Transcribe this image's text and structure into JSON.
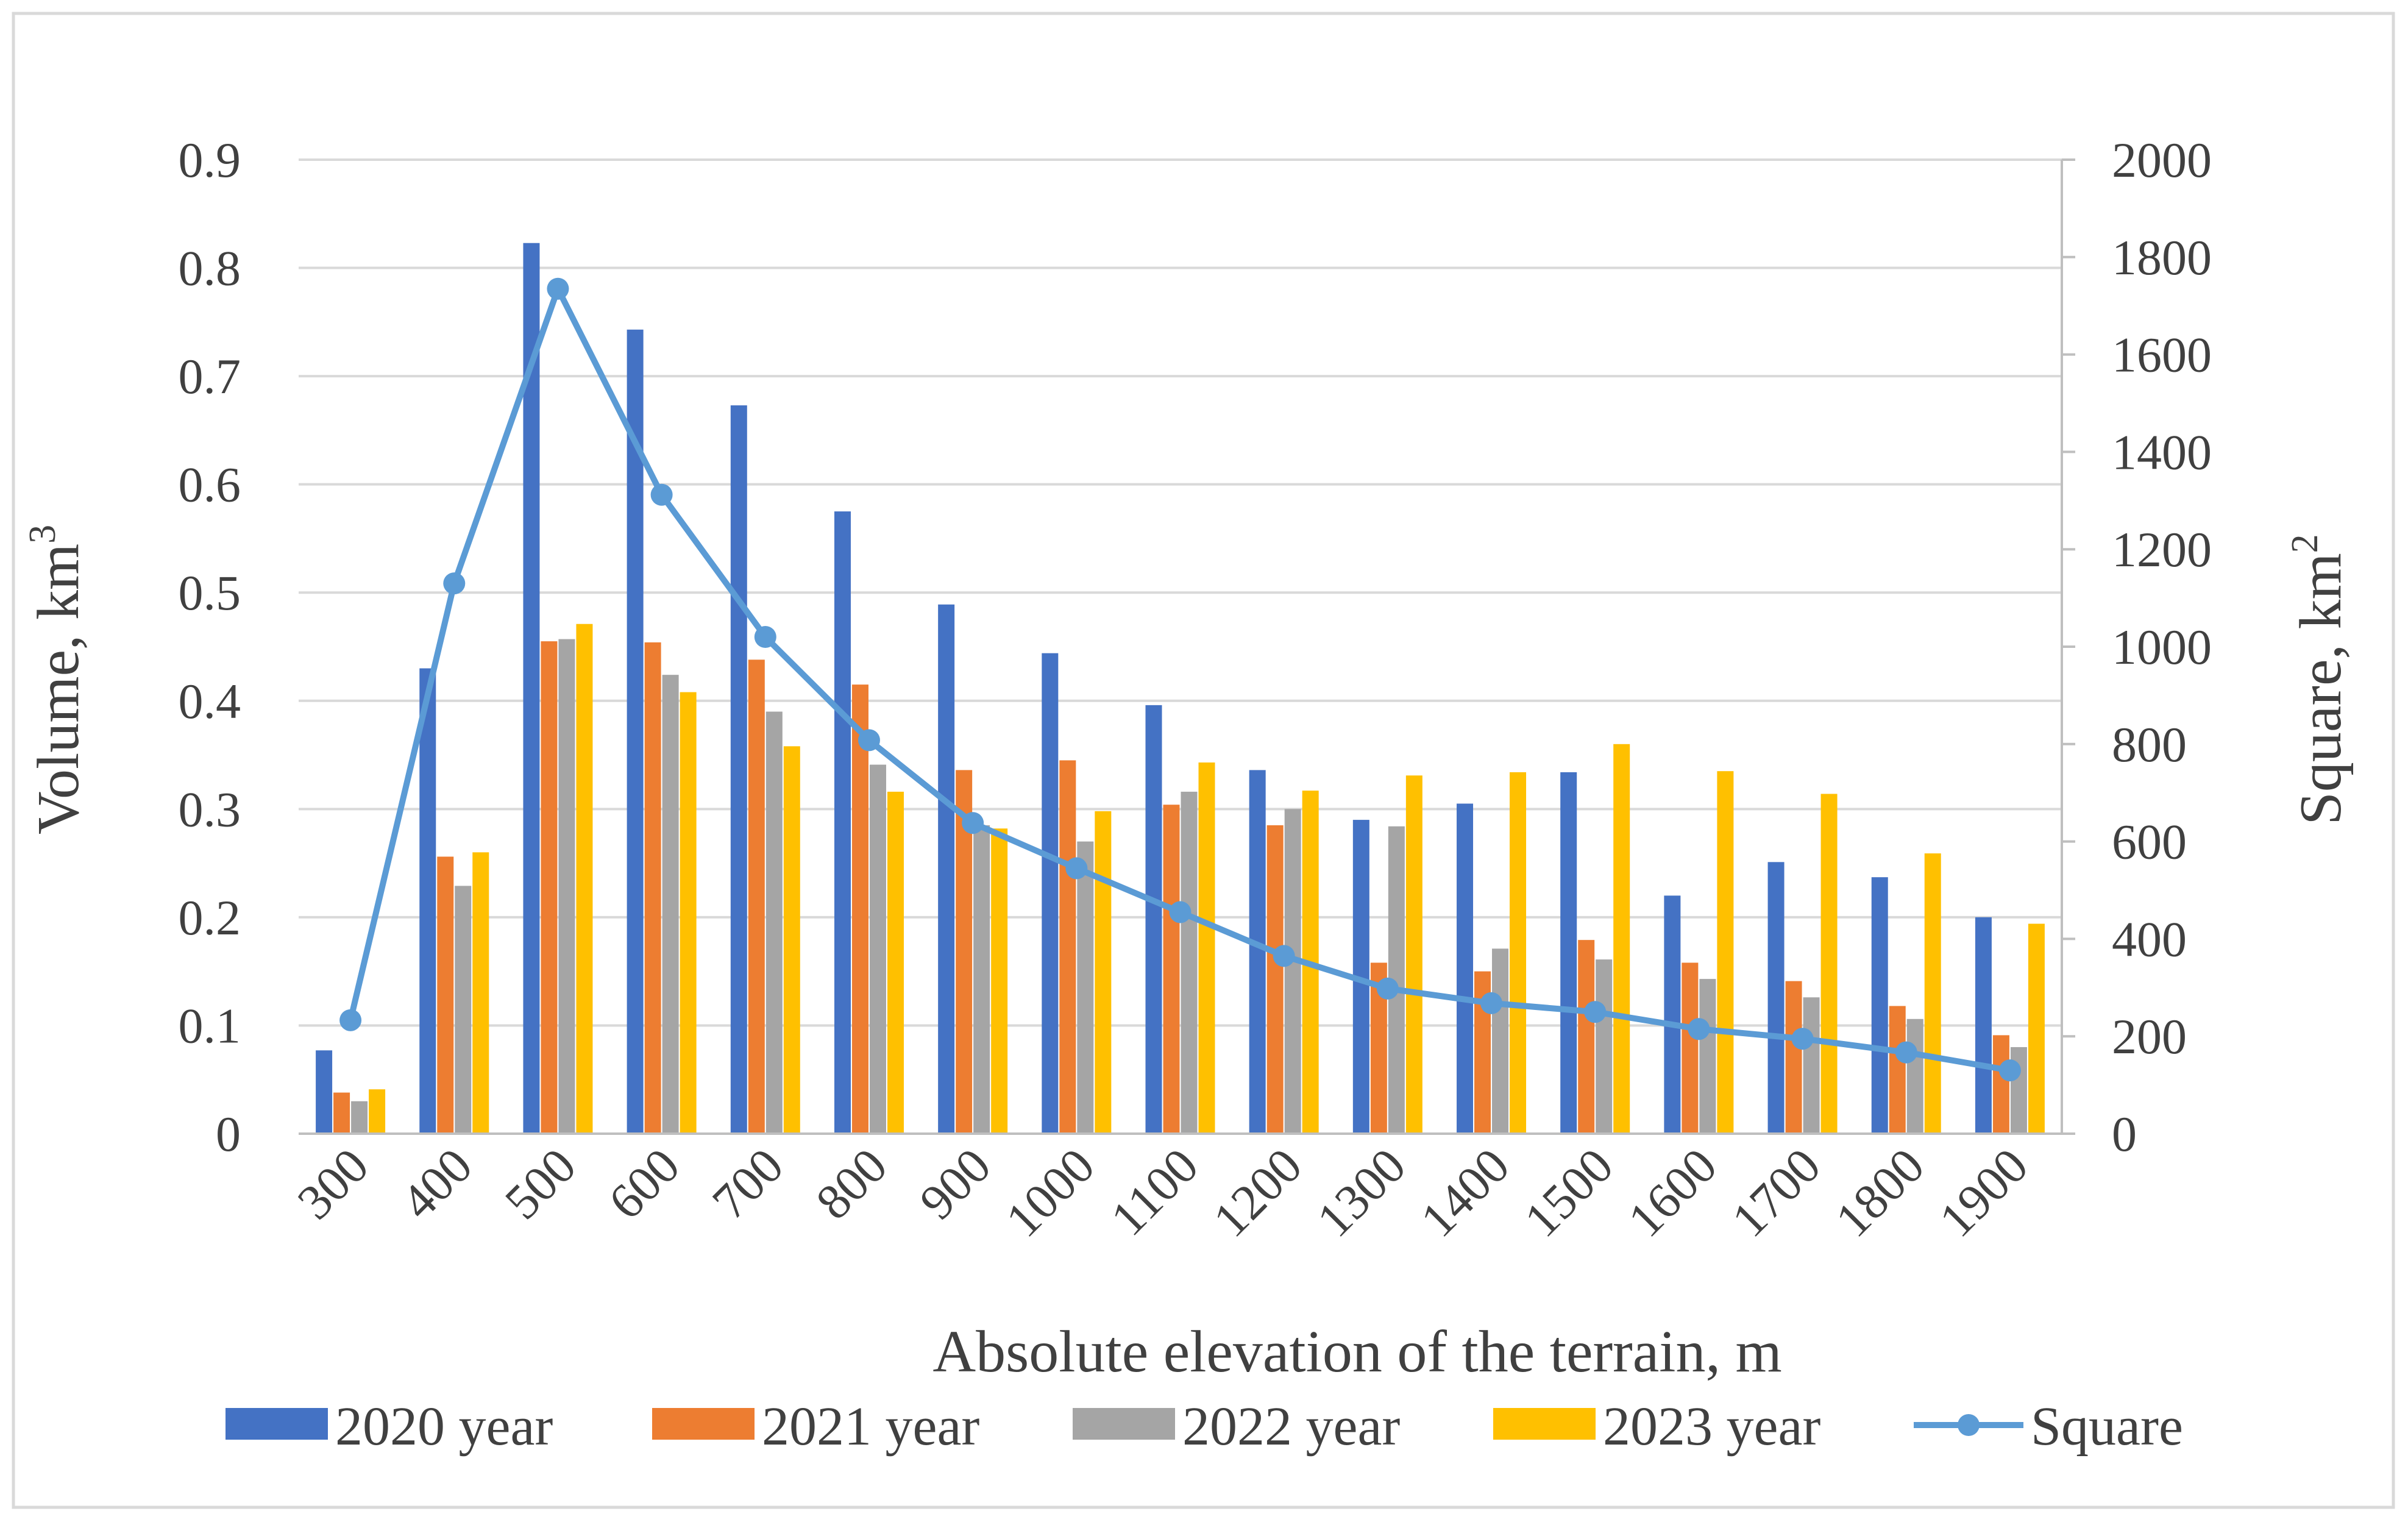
{
  "chart_data": {
    "type": "bar",
    "xlabel": "Absolute elevation of the terrain, m",
    "ylabel": {
      "text": "Volume, km",
      "sup": "3"
    },
    "y2label": {
      "text": "Square, km",
      "sup": "2"
    },
    "ylim": [
      0,
      0.9
    ],
    "yticks": [
      "0",
      "0.1",
      "0.2",
      "0.3",
      "0.4",
      "0.5",
      "0.6",
      "0.7",
      "0.8",
      "0.9"
    ],
    "y2lim": [
      0,
      2000
    ],
    "y2ticks": [
      "0",
      "200",
      "400",
      "600",
      "800",
      "1000",
      "1200",
      "1400",
      "1600",
      "1800",
      "2000"
    ],
    "grid": true,
    "legend_position": "bottom",
    "categories": [
      "300",
      "400",
      "500",
      "600",
      "700",
      "800",
      "900",
      "1000",
      "1100",
      "1200",
      "1300",
      "1400",
      "1500",
      "1600",
      "1700",
      "1800",
      "1900"
    ],
    "series": [
      {
        "name": "2020 year",
        "type": "bar",
        "axis": "left",
        "color": "#4472C4",
        "values": [
          0.077,
          0.43,
          0.823,
          0.743,
          0.673,
          0.575,
          0.489,
          0.444,
          0.396,
          0.336,
          0.29,
          0.305,
          0.334,
          0.22,
          0.251,
          0.237,
          0.2
        ]
      },
      {
        "name": "2021 year",
        "type": "bar",
        "axis": "left",
        "color": "#ED7D31",
        "values": [
          0.038,
          0.256,
          0.455,
          0.454,
          0.438,
          0.415,
          0.336,
          0.345,
          0.304,
          0.285,
          0.158,
          0.15,
          0.179,
          0.158,
          0.141,
          0.118,
          0.091
        ]
      },
      {
        "name": "2022 year",
        "type": "bar",
        "axis": "left",
        "color": "#A5A5A5",
        "values": [
          0.03,
          0.229,
          0.457,
          0.424,
          0.39,
          0.341,
          0.285,
          0.27,
          0.316,
          0.3,
          0.284,
          0.171,
          0.161,
          0.143,
          0.126,
          0.106,
          0.08
        ]
      },
      {
        "name": "2023 year",
        "type": "bar",
        "axis": "left",
        "color": "#FFC000",
        "values": [
          0.041,
          0.26,
          0.471,
          0.408,
          0.358,
          0.316,
          0.282,
          0.298,
          0.343,
          0.317,
          0.331,
          0.334,
          0.36,
          0.335,
          0.314,
          0.259,
          0.194
        ]
      },
      {
        "name": "Square",
        "type": "line",
        "axis": "right",
        "color": "#5B9BD5",
        "values": [
          233,
          1130,
          1735,
          1312,
          1020,
          808,
          638,
          545,
          455,
          365,
          298,
          268,
          250,
          215,
          195,
          167,
          130
        ]
      }
    ]
  }
}
